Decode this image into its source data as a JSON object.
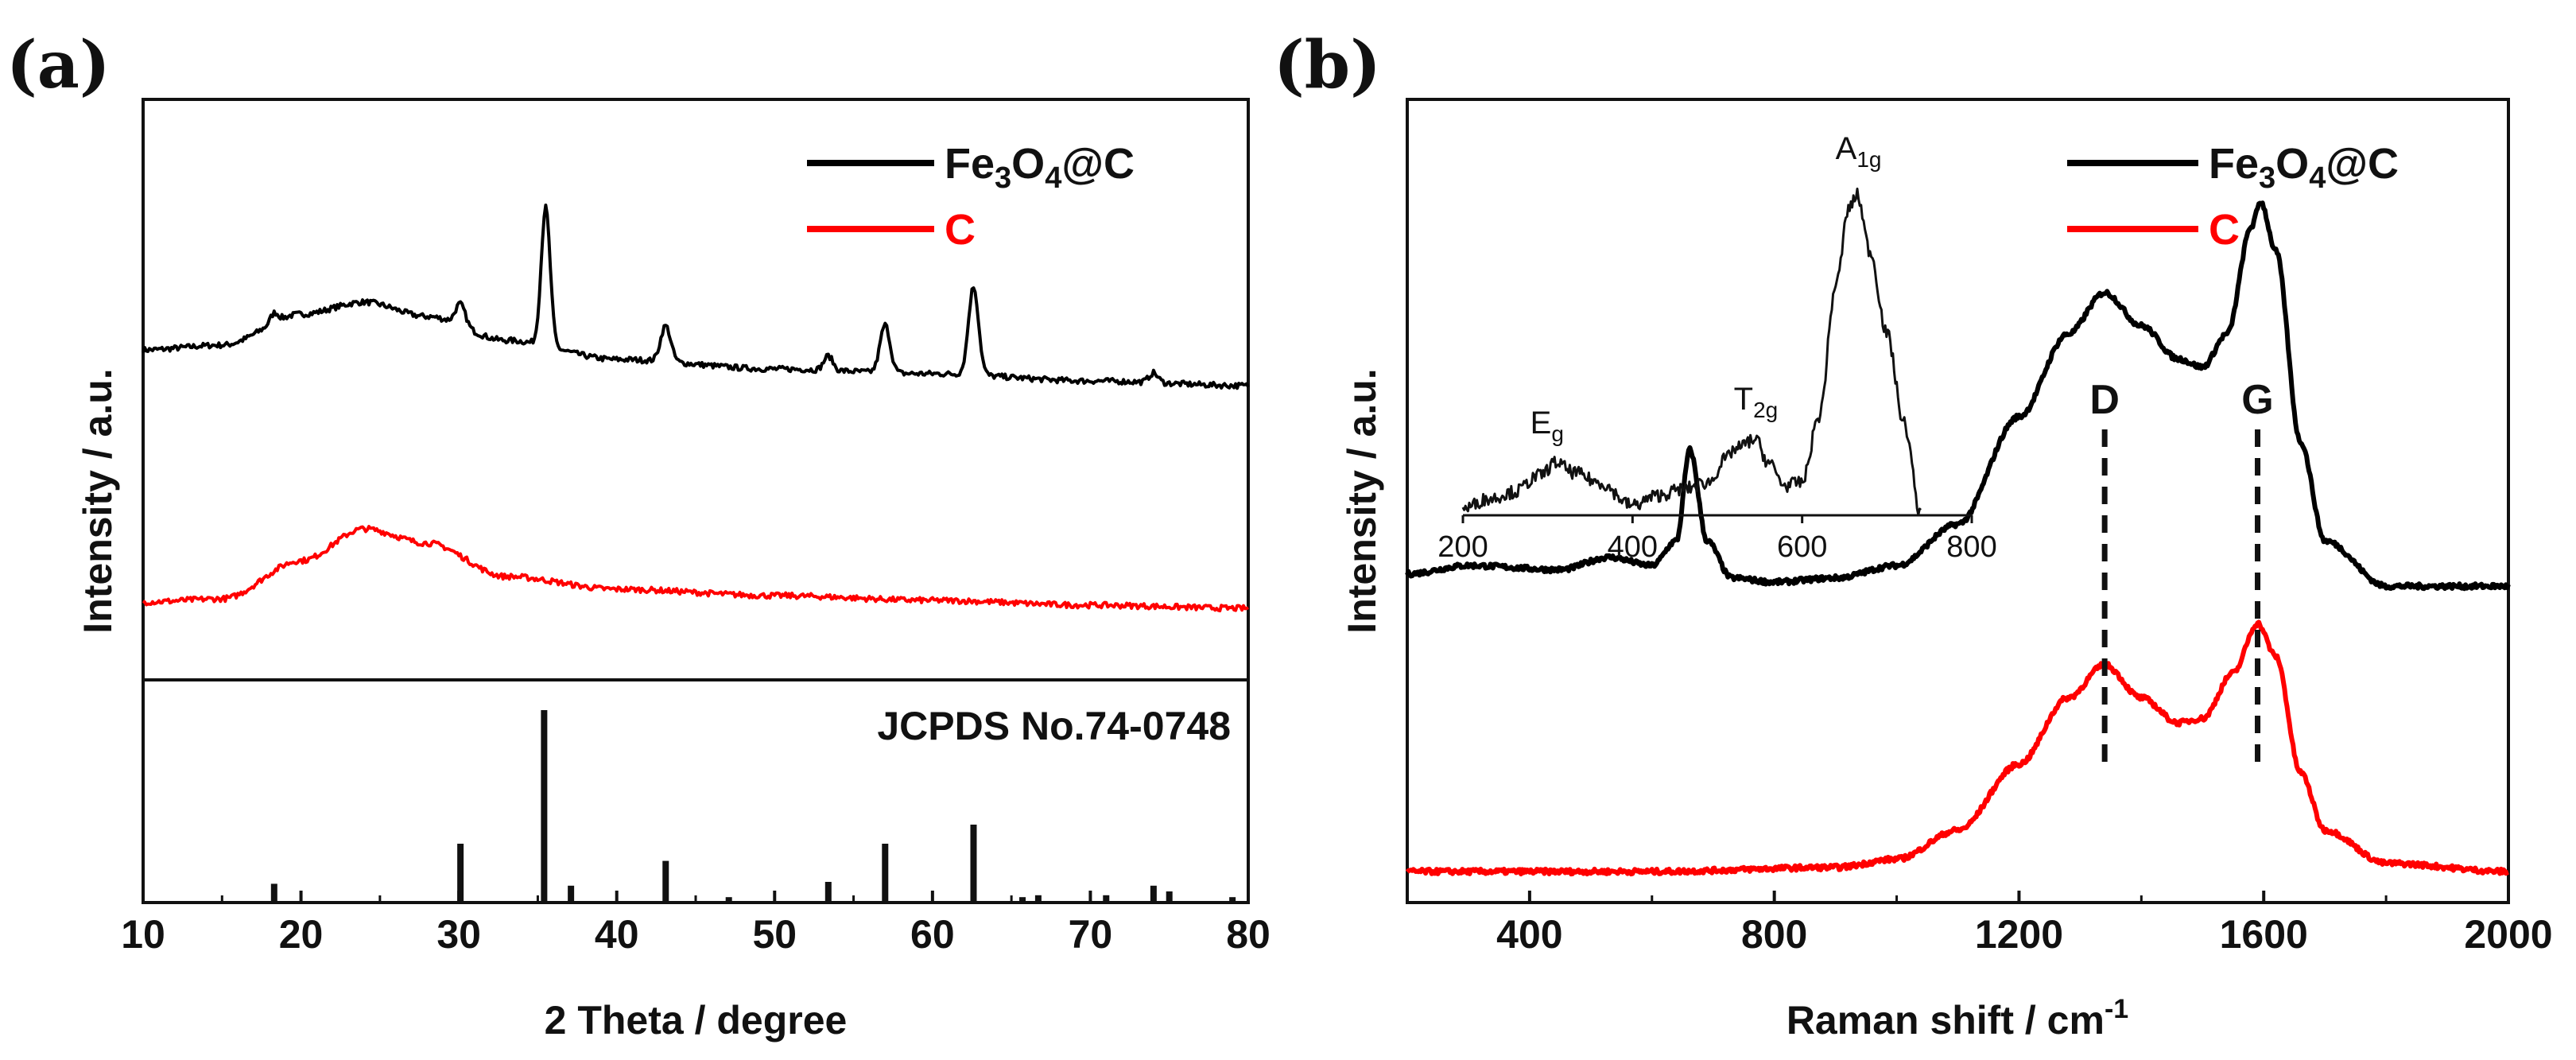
{
  "figure": {
    "panel_a_label": "(a)",
    "panel_b_label": "(b)"
  },
  "chart_data": [
    {
      "panel": "(a)",
      "type": "line",
      "xlabel": "2 Theta / degree",
      "ylabel": "Intensity / a.u.",
      "xlim": [
        10,
        80
      ],
      "xticks": [
        "10",
        "20",
        "30",
        "40",
        "50",
        "60",
        "70",
        "80"
      ],
      "legend": {
        "position": "top-right",
        "entries": [
          {
            "name": "Fe3O4@C",
            "text": "Fe",
            "sub1": "3",
            "mid": "O",
            "sub2": "4",
            "tail": "@C",
            "color": "#000000"
          },
          {
            "name": "C",
            "text": "C",
            "color": "#ff0000"
          }
        ]
      },
      "series": [
        {
          "name": "Fe3O4@C",
          "color": "#000000",
          "baseline": [
            [
              10,
              0.3
            ],
            [
              15,
              0.32
            ],
            [
              20,
              0.45
            ],
            [
              24,
              0.5
            ],
            [
              28,
              0.44
            ],
            [
              33,
              0.34
            ],
            [
              40,
              0.26
            ],
            [
              50,
              0.22
            ],
            [
              60,
              0.2
            ],
            [
              70,
              0.17
            ],
            [
              80,
              0.15
            ]
          ],
          "peaks": [
            [
              18.3,
              0.04,
              0.35
            ],
            [
              30.1,
              0.09,
              0.45
            ],
            [
              35.5,
              0.58,
              0.4
            ],
            [
              43.1,
              0.15,
              0.45
            ],
            [
              53.4,
              0.06,
              0.4
            ],
            [
              57.0,
              0.2,
              0.45
            ],
            [
              62.6,
              0.37,
              0.45
            ],
            [
              74.0,
              0.04,
              0.4
            ]
          ]
        },
        {
          "name": "C",
          "color": "#ff0000",
          "baseline": [
            [
              10,
              0.04
            ],
            [
              15,
              0.06
            ],
            [
              20,
              0.3
            ],
            [
              24,
              0.5
            ],
            [
              28,
              0.41
            ],
            [
              33,
              0.2
            ],
            [
              40,
              0.12
            ],
            [
              50,
              0.08
            ],
            [
              60,
              0.05
            ],
            [
              70,
              0.02
            ],
            [
              80,
              0.0
            ]
          ],
          "peaks": []
        }
      ],
      "reference": {
        "label": "JCPDS No.74-0748",
        "lines": [
          {
            "x": 18.3,
            "h": 9
          },
          {
            "x": 30.1,
            "h": 30
          },
          {
            "x": 35.4,
            "h": 100
          },
          {
            "x": 37.1,
            "h": 8
          },
          {
            "x": 43.1,
            "h": 21
          },
          {
            "x": 47.1,
            "h": 2
          },
          {
            "x": 53.4,
            "h": 10
          },
          {
            "x": 57.0,
            "h": 30
          },
          {
            "x": 62.6,
            "h": 40
          },
          {
            "x": 65.7,
            "h": 2
          },
          {
            "x": 66.7,
            "h": 3
          },
          {
            "x": 71.0,
            "h": 3
          },
          {
            "x": 74.0,
            "h": 8
          },
          {
            "x": 75.0,
            "h": 5
          },
          {
            "x": 79.0,
            "h": 2
          }
        ]
      }
    },
    {
      "panel": "(b)",
      "type": "line",
      "xlabel": "Raman shift / cm",
      "xlabel_sup": "-1",
      "ylabel": "Intensity / a.u.",
      "xlim": [
        200,
        2000
      ],
      "xticks": [
        "400",
        "800",
        "1200",
        "1600",
        "2000"
      ],
      "legend": {
        "position": "top-right",
        "entries": [
          {
            "name": "Fe3O4@C",
            "text": "Fe",
            "sub1": "3",
            "mid": "O",
            "sub2": "4",
            "tail": "@C",
            "color": "#000000"
          },
          {
            "name": "C",
            "text": "C",
            "color": "#ff0000"
          }
        ]
      },
      "series": [
        {
          "name": "Fe3O4@C",
          "color": "#000000",
          "points": [
            [
              200,
              0.36
            ],
            [
              300,
              0.37
            ],
            [
              450,
              0.365
            ],
            [
              530,
              0.38
            ],
            [
              600,
              0.37
            ],
            [
              640,
              0.4
            ],
            [
              662,
              0.51
            ],
            [
              690,
              0.4
            ],
            [
              730,
              0.355
            ],
            [
              800,
              0.35
            ],
            [
              900,
              0.355
            ],
            [
              1000,
              0.37
            ],
            [
              1100,
              0.42
            ],
            [
              1200,
              0.55
            ],
            [
              1280,
              0.65
            ],
            [
              1340,
              0.7
            ],
            [
              1400,
              0.66
            ],
            [
              1460,
              0.62
            ],
            [
              1500,
              0.61
            ],
            [
              1540,
              0.65
            ],
            [
              1580,
              0.78
            ],
            [
              1595,
              0.81
            ],
            [
              1620,
              0.75
            ],
            [
              1660,
              0.52
            ],
            [
              1700,
              0.4
            ],
            [
              1800,
              0.345
            ],
            [
              1900,
              0.345
            ],
            [
              2000,
              0.345
            ]
          ]
        },
        {
          "name": "C",
          "color": "#ff0000",
          "points": [
            [
              200,
              0.0
            ],
            [
              600,
              0.0
            ],
            [
              900,
              0.005
            ],
            [
              1000,
              0.015
            ],
            [
              1100,
              0.05
            ],
            [
              1200,
              0.13
            ],
            [
              1280,
              0.21
            ],
            [
              1340,
              0.25
            ],
            [
              1400,
              0.21
            ],
            [
              1460,
              0.18
            ],
            [
              1500,
              0.185
            ],
            [
              1550,
              0.24
            ],
            [
              1590,
              0.3
            ],
            [
              1620,
              0.26
            ],
            [
              1660,
              0.12
            ],
            [
              1700,
              0.05
            ],
            [
              1800,
              0.01
            ],
            [
              2000,
              0.0
            ]
          ]
        }
      ],
      "peak_markers": [
        {
          "label": "D",
          "x": 1340
        },
        {
          "label": "G",
          "x": 1590
        }
      ],
      "inset": {
        "xlim": [
          200,
          800
        ],
        "xticks": [
          "200",
          "400",
          "600",
          "800"
        ],
        "points": [
          [
            200,
            0.02
          ],
          [
            230,
            0.05
          ],
          [
            260,
            0.07
          ],
          [
            290,
            0.12
          ],
          [
            310,
            0.16
          ],
          [
            330,
            0.13
          ],
          [
            360,
            0.1
          ],
          [
            400,
            0.03
          ],
          [
            430,
            0.06
          ],
          [
            460,
            0.08
          ],
          [
            490,
            0.1
          ],
          [
            510,
            0.17
          ],
          [
            520,
            0.2
          ],
          [
            545,
            0.23
          ],
          [
            560,
            0.16
          ],
          [
            580,
            0.09
          ],
          [
            600,
            0.1
          ],
          [
            620,
            0.3
          ],
          [
            640,
            0.7
          ],
          [
            655,
            0.93
          ],
          [
            665,
            0.97
          ],
          [
            680,
            0.8
          ],
          [
            700,
            0.55
          ],
          [
            720,
            0.28
          ],
          [
            740,
            0.0
          ]
        ],
        "annotations": [
          {
            "main": "E",
            "sub": "g",
            "x": 300
          },
          {
            "main": "T",
            "sub": "2g",
            "x": 540
          },
          {
            "main": "A",
            "sub": "1g",
            "x": 660
          }
        ]
      }
    }
  ]
}
